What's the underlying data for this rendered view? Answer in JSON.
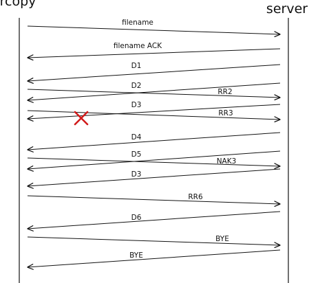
{
  "participants": {
    "client": "rcopy",
    "server": "server"
  },
  "messages": [
    {
      "label": "filename",
      "from": "client",
      "to": "server"
    },
    {
      "label": "filename ACK",
      "from": "server",
      "to": "client"
    },
    {
      "label": "D1",
      "from": "server",
      "to": "client"
    },
    {
      "label": "D2",
      "from": "server",
      "to": "client"
    },
    {
      "label": "RR2",
      "from": "client",
      "to": "server"
    },
    {
      "label": "D3",
      "from": "server",
      "to": "client"
    },
    {
      "label": "RR3",
      "from": "client",
      "to": "server",
      "lost": true
    },
    {
      "label": "D4",
      "from": "server",
      "to": "client"
    },
    {
      "label": "D5",
      "from": "server",
      "to": "client"
    },
    {
      "label": "NAK3",
      "from": "client",
      "to": "server"
    },
    {
      "label": "D3",
      "from": "server",
      "to": "client"
    },
    {
      "label": "RR6",
      "from": "client",
      "to": "server"
    },
    {
      "label": "D6",
      "from": "server",
      "to": "client"
    },
    {
      "label": "BYE",
      "from": "client",
      "to": "server"
    },
    {
      "label": "BYE",
      "from": "server",
      "to": "client"
    }
  ],
  "colors": {
    "line": "#111111",
    "loss_marker": "#d11a1a"
  },
  "icons": {
    "loss_marker": "cross-icon"
  }
}
